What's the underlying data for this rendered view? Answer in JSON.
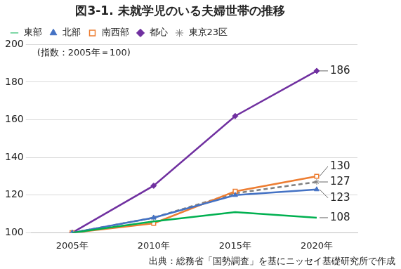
{
  "chart_data": {
    "type": "line",
    "title": "図3-1. 未就学児のいる夫婦世帯の推移",
    "annotations": [
      "(指数：2005年＝100)"
    ],
    "source": "出典：総務省「国勢調査」を基にニッセイ基礎研究所で作成",
    "categories": [
      "2005年",
      "2010年",
      "2015年",
      "2020年"
    ],
    "series": [
      {
        "name": "東京23区",
        "color": "#808080",
        "marker": "asterisk",
        "line_style": "dashed",
        "values": [
          100,
          108,
          121,
          127
        ],
        "value_labels": [
          null,
          null,
          null,
          "127"
        ]
      },
      {
        "name": "都心",
        "color": "#7030a0",
        "marker": "diamond",
        "line_style": "solid",
        "values": [
          100,
          125,
          162,
          186
        ],
        "value_labels": [
          null,
          null,
          null,
          "186"
        ]
      },
      {
        "name": "南西部",
        "color": "#ed7d31",
        "marker": "square",
        "line_style": "solid",
        "values": [
          100,
          105,
          122,
          130
        ],
        "value_labels": [
          null,
          null,
          null,
          "130"
        ]
      },
      {
        "name": "北部",
        "color": "#4472c4",
        "marker": "triangle",
        "line_style": "solid",
        "values": [
          100,
          108,
          120,
          123
        ],
        "value_labels": [
          null,
          null,
          null,
          "123"
        ]
      },
      {
        "name": "東部",
        "color": "#00b050",
        "marker": "none",
        "line_style": "solid",
        "values": [
          100,
          106,
          111,
          108
        ],
        "value_labels": [
          null,
          null,
          null,
          "108"
        ]
      }
    ],
    "ylim": [
      100,
      200
    ],
    "yticks": [
      100,
      120,
      140,
      160,
      180,
      200
    ],
    "grid": true,
    "legend": "top",
    "data_labels": true
  }
}
